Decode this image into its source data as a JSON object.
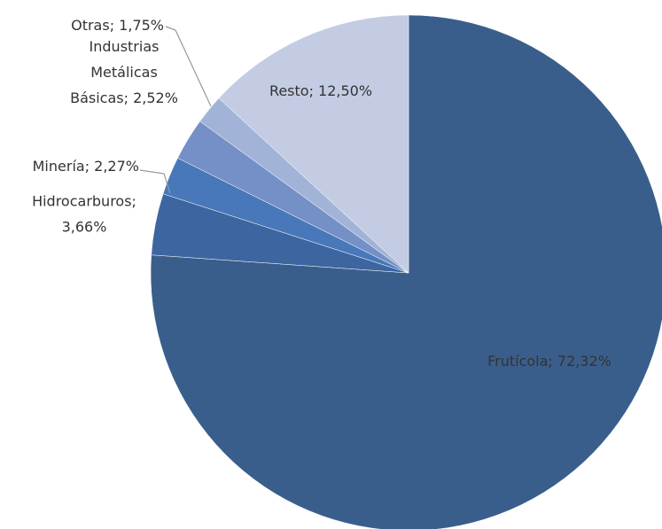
{
  "chart_data": {
    "type": "pie",
    "values": [
      72.32,
      3.66,
      2.27,
      2.52,
      1.75,
      12.5
    ],
    "value_labels": [
      "Frutícola; 72,32%",
      "Hidrocarburos;\n3,66%",
      "Minería; 2,27%",
      "Industrias\nMetálicas\nBásicas; 2,52%",
      "Otras; 1,75%",
      "Resto; 12,50%"
    ],
    "colors": [
      "#3a5e8c",
      "#3d65a0",
      "#4878ba",
      "#7490c6",
      "#a2b3d8",
      "#c3cce3"
    ]
  }
}
